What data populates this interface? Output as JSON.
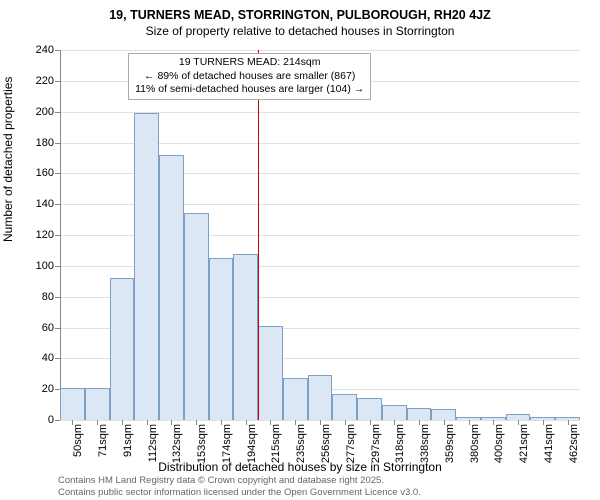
{
  "title_main": "19, TURNERS MEAD, STORRINGTON, PULBOROUGH, RH20 4JZ",
  "title_sub": "Size of property relative to detached houses in Storrington",
  "y_axis_label": "Number of detached properties",
  "x_axis_label": "Distribution of detached houses by size in Storrington",
  "chart": {
    "type": "histogram",
    "ylim": [
      0,
      240
    ],
    "ytick_step": 20,
    "x_categories": [
      "50sqm",
      "71sqm",
      "91sqm",
      "112sqm",
      "132sqm",
      "153sqm",
      "174sqm",
      "194sqm",
      "215sqm",
      "235sqm",
      "256sqm",
      "277sqm",
      "297sqm",
      "318sqm",
      "338sqm",
      "359sqm",
      "380sqm",
      "400sqm",
      "421sqm",
      "441sqm",
      "462sqm"
    ],
    "values": [
      21,
      21,
      92,
      199,
      172,
      134,
      105,
      108,
      61,
      27,
      29,
      17,
      14,
      10,
      8,
      7,
      2,
      2,
      4,
      2,
      2
    ],
    "bar_fill": "#dce7f5",
    "bar_stroke": "#7f9fc7",
    "background_color": "#ffffff",
    "grid_color": "#e0e0e0",
    "axis_color": "#888888",
    "ref_line": {
      "x_index": 8,
      "color": "#cc0000"
    },
    "annotation": {
      "lines": [
        "19 TURNERS MEAD: 214sqm",
        "← 89% of detached houses are smaller (867)",
        "11% of semi-detached houses are larger (104) →"
      ]
    },
    "title_fontsize": 12.5,
    "label_fontsize": 12,
    "tick_fontsize": 11
  },
  "attribution": {
    "line1": "Contains HM Land Registry data © Crown copyright and database right 2025.",
    "line2": "Contains public sector information licensed under the Open Government Licence v3.0."
  }
}
